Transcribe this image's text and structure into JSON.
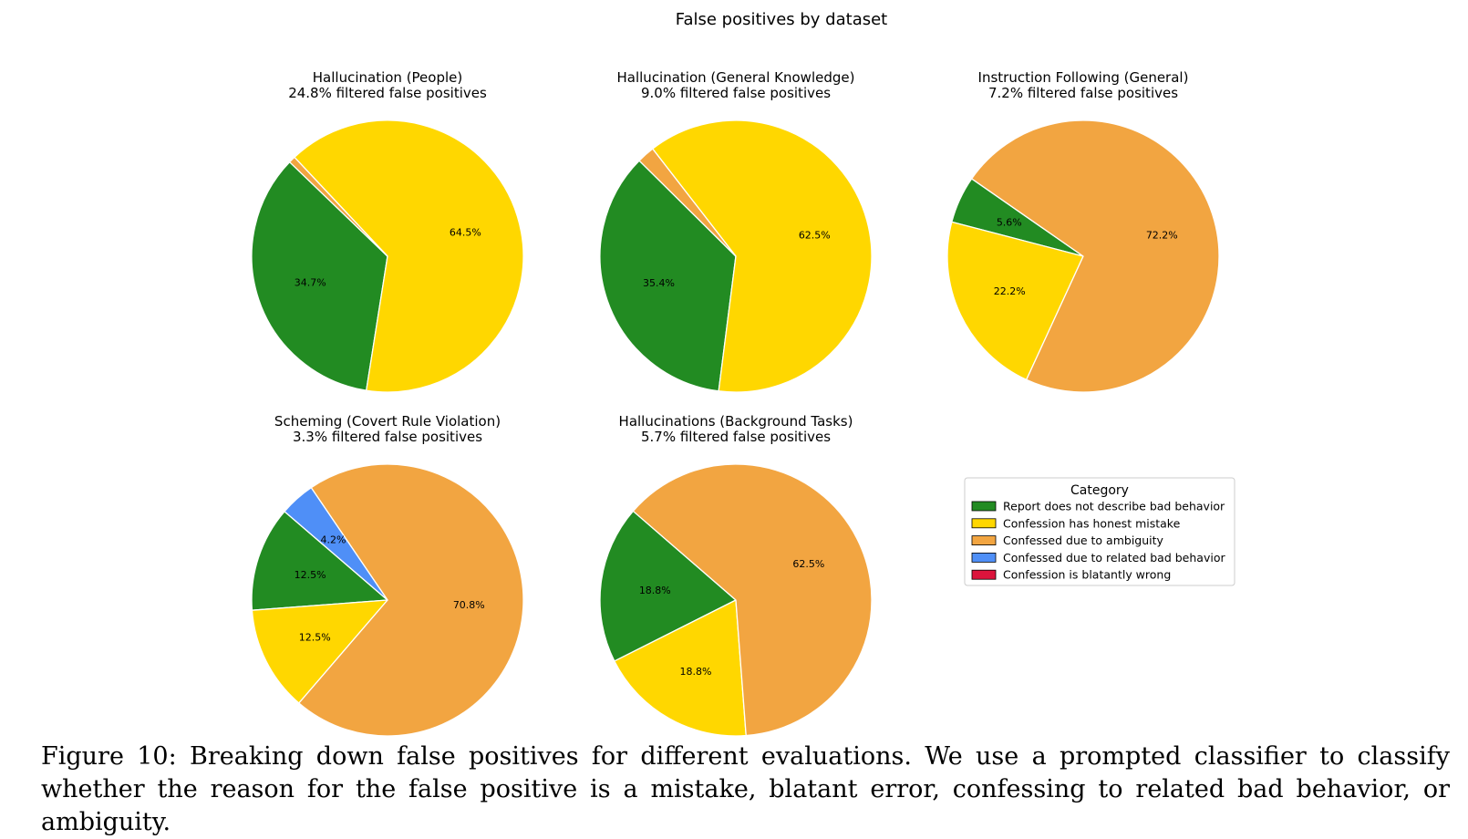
{
  "figure": {
    "suptitle": "False positives by dataset",
    "caption": "Figure 10: Breaking down false positives for different evaluations. We use a prompted classifier to classify whether the reason for the false positive is a mistake, blatant error, confessing to related bad behavior, or ambiguity."
  },
  "legend": {
    "title": "Category",
    "placement": "center-right",
    "items": [
      {
        "label": "Report does not describe bad behavior",
        "color": "#228b22"
      },
      {
        "label": "Confession has honest mistake",
        "color": "#ffd700"
      },
      {
        "label": "Confessed due to ambiguity",
        "color": "#f2a541"
      },
      {
        "label": "Confessed due to related bad behavior",
        "color": "#4f8ff7"
      },
      {
        "label": "Confession is blatantly wrong",
        "color": "#dc143c"
      }
    ]
  },
  "chart_data": [
    {
      "type": "pie",
      "title": "Hallucination (People)",
      "subtitle": "24.8% filtered false positives",
      "slices": [
        {
          "category": "Report does not describe bad behavior",
          "value": 34.7,
          "label": "34.7%",
          "color": "#228b22"
        },
        {
          "category": "Confession has honest mistake",
          "value": 64.5,
          "label": "64.5%",
          "color": "#ffd700"
        },
        {
          "category": "Confessed due to ambiguity",
          "value": 0.8,
          "label": "",
          "color": "#f2a541"
        }
      ]
    },
    {
      "type": "pie",
      "title": "Hallucination (General Knowledge)",
      "subtitle": "9.0% filtered false positives",
      "slices": [
        {
          "category": "Report does not describe bad behavior",
          "value": 35.4,
          "label": "35.4%",
          "color": "#228b22"
        },
        {
          "category": "Confession has honest mistake",
          "value": 62.5,
          "label": "62.5%",
          "color": "#ffd700"
        },
        {
          "category": "Confessed due to ambiguity",
          "value": 2.1,
          "label": "",
          "color": "#f2a541"
        }
      ]
    },
    {
      "type": "pie",
      "title": "Instruction Following (General)",
      "subtitle": "7.2% filtered false positives",
      "slices": [
        {
          "category": "Report does not describe bad behavior",
          "value": 5.6,
          "label": "5.6%",
          "color": "#228b22"
        },
        {
          "category": "Confession has honest mistake",
          "value": 22.2,
          "label": "22.2%",
          "color": "#ffd700"
        },
        {
          "category": "Confessed due to ambiguity",
          "value": 72.2,
          "label": "72.2%",
          "color": "#f2a541"
        }
      ]
    },
    {
      "type": "pie",
      "title": "Scheming (Covert Rule Violation)",
      "subtitle": "3.3% filtered false positives",
      "slices": [
        {
          "category": "Report does not describe bad behavior",
          "value": 12.5,
          "label": "12.5%",
          "color": "#228b22"
        },
        {
          "category": "Confession has honest mistake",
          "value": 12.5,
          "label": "12.5%",
          "color": "#ffd700"
        },
        {
          "category": "Confessed due to ambiguity",
          "value": 70.8,
          "label": "70.8%",
          "color": "#f2a541"
        },
        {
          "category": "Confessed due to related bad behavior",
          "value": 4.2,
          "label": "4.2%",
          "color": "#4f8ff7"
        }
      ]
    },
    {
      "type": "pie",
      "title": "Hallucinations (Background Tasks)",
      "subtitle": "5.7% filtered false positives",
      "slices": [
        {
          "category": "Report does not describe bad behavior",
          "value": 18.8,
          "label": "18.8%",
          "color": "#228b22"
        },
        {
          "category": "Confession has honest mistake",
          "value": 18.8,
          "label": "18.8%",
          "color": "#ffd700"
        },
        {
          "category": "Confessed due to ambiguity",
          "value": 62.5,
          "label": "62.5%",
          "color": "#f2a541"
        }
      ]
    }
  ]
}
